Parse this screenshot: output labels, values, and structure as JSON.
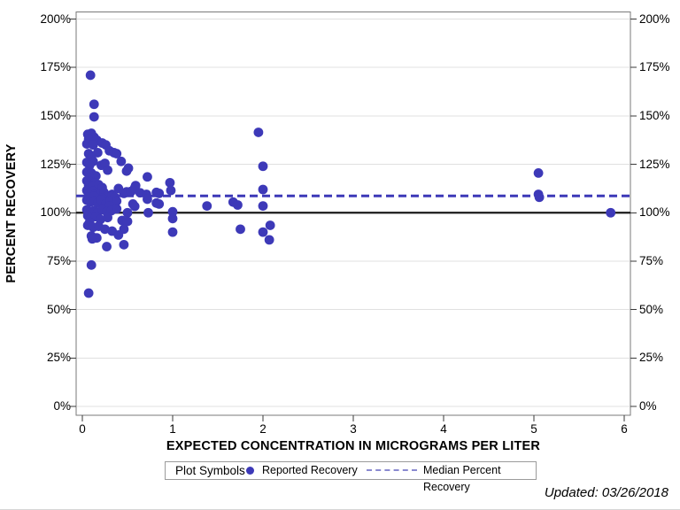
{
  "chart_data": {
    "type": "scatter",
    "title": "",
    "xlabel": "EXPECTED CONCENTRATION IN MICROGRAMS PER LITER",
    "ylabel": "PERCENT RECOVERY",
    "x_ticks": [
      "0",
      "1",
      "2",
      "3",
      "4",
      "5",
      "6"
    ],
    "x_tick_values": [
      0,
      1,
      2,
      3,
      4,
      5,
      6
    ],
    "y_ticks": [
      "0%",
      "25%",
      "50%",
      "75%",
      "100%",
      "125%",
      "150%",
      "175%",
      "200%"
    ],
    "y_tick_values": [
      0,
      25,
      50,
      75,
      100,
      125,
      150,
      175,
      200
    ],
    "xlim": [
      -0.07,
      6.07
    ],
    "ylim": [
      -4.6,
      203.9
    ],
    "grid": "horizontal-only",
    "colors": {
      "marker": "#3d39b8",
      "median_line": "#3d39b8",
      "reference_line": "#1a1a1a",
      "gridline": "#e0e0e0",
      "frame": "#7a7a7a",
      "tick": "#3a3a3a"
    },
    "series": [
      {
        "name": "Reported Recovery",
        "type": "scatter",
        "points": [
          [
            0.09,
            171
          ],
          [
            0.13,
            156
          ],
          [
            0.13,
            149.5
          ],
          [
            0.06,
            140.5
          ],
          [
            0.1,
            141
          ],
          [
            0.13,
            139
          ],
          [
            0.07,
            138
          ],
          [
            0.16,
            137.5
          ],
          [
            0.05,
            135.5
          ],
          [
            0.12,
            135
          ],
          [
            0.22,
            136
          ],
          [
            0.26,
            135
          ],
          [
            0.07,
            130.5
          ],
          [
            0.17,
            131
          ],
          [
            0.3,
            132
          ],
          [
            0.35,
            131
          ],
          [
            0.38,
            130.5
          ],
          [
            0.1,
            128.5
          ],
          [
            0.05,
            126
          ],
          [
            0.12,
            126.5
          ],
          [
            0.08,
            124.5
          ],
          [
            0.21,
            124.5
          ],
          [
            0.25,
            125.5
          ],
          [
            0.43,
            126.5
          ],
          [
            0.51,
            123
          ],
          [
            0.28,
            122
          ],
          [
            0.05,
            121
          ],
          [
            0.1,
            120.5
          ],
          [
            0.15,
            119
          ],
          [
            0.08,
            118
          ],
          [
            0.49,
            121.5
          ],
          [
            0.72,
            118.5
          ],
          [
            0.05,
            116.5
          ],
          [
            0.1,
            116
          ],
          [
            0.14,
            115.5
          ],
          [
            0.07,
            114
          ],
          [
            0.12,
            113.5
          ],
          [
            0.18,
            114.5
          ],
          [
            0.22,
            113
          ],
          [
            0.59,
            114
          ],
          [
            0.97,
            115.5
          ],
          [
            0.4,
            112.5
          ],
          [
            0.05,
            111.5
          ],
          [
            0.08,
            110.5
          ],
          [
            0.11,
            111
          ],
          [
            0.15,
            110
          ],
          [
            0.19,
            109.5
          ],
          [
            0.24,
            110.5
          ],
          [
            0.28,
            108.5
          ],
          [
            0.33,
            109.5
          ],
          [
            0.46,
            110
          ],
          [
            0.49,
            110.8
          ],
          [
            0.54,
            111
          ],
          [
            0.58,
            112.8
          ],
          [
            0.64,
            110.3
          ],
          [
            0.71,
            109.5
          ],
          [
            0.82,
            110.5
          ],
          [
            0.85,
            110
          ],
          [
            0.98,
            111.5
          ],
          [
            0.06,
            108
          ],
          [
            0.13,
            108.5
          ],
          [
            0.22,
            107.5
          ],
          [
            0.36,
            108
          ],
          [
            0.05,
            106.5
          ],
          [
            0.09,
            105.5
          ],
          [
            0.13,
            106
          ],
          [
            0.17,
            105
          ],
          [
            0.21,
            106.5
          ],
          [
            0.26,
            104.5
          ],
          [
            0.31,
            105.5
          ],
          [
            0.38,
            106
          ],
          [
            0.56,
            104.5
          ],
          [
            0.72,
            107
          ],
          [
            0.82,
            105
          ],
          [
            0.85,
            104.5
          ],
          [
            0.3,
            103.5
          ],
          [
            0.58,
            103.3
          ],
          [
            1.38,
            103.5
          ],
          [
            0.05,
            101.5
          ],
          [
            0.09,
            100.5
          ],
          [
            0.13,
            101
          ],
          [
            0.17,
            100
          ],
          [
            0.22,
            101.5
          ],
          [
            0.27,
            100.5
          ],
          [
            0.32,
            101
          ],
          [
            0.38,
            102
          ],
          [
            0.5,
            100
          ],
          [
            0.73,
            100
          ],
          [
            1.0,
            100.5
          ],
          [
            0.06,
            98.5
          ],
          [
            0.1,
            97.5
          ],
          [
            0.15,
            98
          ],
          [
            0.2,
            96.5
          ],
          [
            0.28,
            97.5
          ],
          [
            0.44,
            96
          ],
          [
            0.5,
            95.5
          ],
          [
            1.0,
            97
          ],
          [
            0.08,
            95
          ],
          [
            0.06,
            93.5
          ],
          [
            0.12,
            92.5
          ],
          [
            0.18,
            93
          ],
          [
            0.25,
            91.5
          ],
          [
            0.33,
            90.5
          ],
          [
            0.46,
            91.5
          ],
          [
            1.0,
            90
          ],
          [
            1.75,
            91.5
          ],
          [
            2.08,
            93.5
          ],
          [
            0.1,
            88
          ],
          [
            0.16,
            87
          ],
          [
            0.4,
            88.5
          ],
          [
            0.11,
            86.5
          ],
          [
            2.0,
            90
          ],
          [
            2.07,
            86
          ],
          [
            0.27,
            82.5
          ],
          [
            0.46,
            83.5
          ],
          [
            0.1,
            73
          ],
          [
            0.07,
            58.5
          ],
          [
            1.95,
            141.5
          ],
          [
            2.0,
            124
          ],
          [
            2.0,
            112
          ],
          [
            2.0,
            103.5
          ],
          [
            1.67,
            105.5
          ],
          [
            1.72,
            104
          ],
          [
            5.05,
            120.5
          ],
          [
            5.05,
            109.5
          ],
          [
            5.06,
            108
          ],
          [
            5.85,
            100
          ]
        ]
      },
      {
        "name": "Median Percent Recovery",
        "type": "hline-dashed",
        "value": 108.7
      },
      {
        "name": "100 percent reference",
        "type": "hline-solid",
        "value": 100
      }
    ],
    "legend": {
      "position": "bottom",
      "title": "Plot Symbols",
      "entries": [
        {
          "marker": "dot",
          "label": "Reported Recovery"
        },
        {
          "marker": "dash",
          "label": "Median Percent Recovery"
        }
      ]
    },
    "footnote": "Updated: 03/26/2018"
  }
}
